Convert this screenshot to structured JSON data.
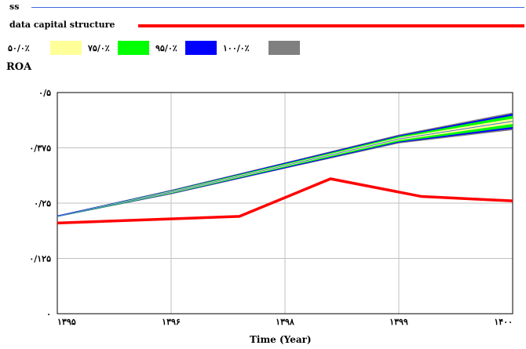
{
  "legend": {
    "series_a": "ss",
    "series_b": "data capital structure",
    "bands": [
      {
        "label": "۵۰/۰٪",
        "color": "#ffff99"
      },
      {
        "label": "۷۵/۰٪",
        "color": "#00ff00"
      },
      {
        "label": "۹۵/۰٪",
        "color": "#0000ff"
      },
      {
        "label": "۱۰۰/۰٪",
        "color": "#808080"
      }
    ]
  },
  "colors": {
    "ss": "#4169e1",
    "data": "#ff0000",
    "grid": "#c0c0c0"
  },
  "chart_data": {
    "type": "line",
    "ylabel": "ROA",
    "xlabel": "Time (Year)",
    "xlim": [
      1395,
      1400
    ],
    "ylim": [
      0,
      0.5
    ],
    "x_ticks": [
      {
        "value": 1395,
        "label": "۱۳۹۵"
      },
      {
        "value": 1396.25,
        "label": "۱۳۹۶"
      },
      {
        "value": 1397.5,
        "label": "۱۳۹۸"
      },
      {
        "value": 1398.75,
        "label": "۱۳۹۹"
      },
      {
        "value": 1400,
        "label": "۱۴۰۰"
      }
    ],
    "y_ticks": [
      {
        "value": 0,
        "label": "۰"
      },
      {
        "value": 0.125,
        "label": "۰/۱۲۵"
      },
      {
        "value": 0.25,
        "label": "۰/۲۵"
      },
      {
        "value": 0.375,
        "label": "۰/۳۷۵"
      },
      {
        "value": 0.5,
        "label": "۰/۵"
      }
    ],
    "series": [
      {
        "name": "data capital structure",
        "x": [
          1395,
          1397.0,
          1398.0,
          1399.0,
          1400
        ],
        "y": [
          0.205,
          0.22,
          0.305,
          0.265,
          0.255
        ]
      },
      {
        "name": "ss",
        "x": [
          1395,
          1396.25,
          1397.5,
          1398.75,
          1400
        ],
        "y": [
          0.22,
          0.275,
          0.335,
          0.395,
          0.435
        ]
      }
    ],
    "bands": [
      {
        "level": "100%",
        "x": [
          1395,
          1396.25,
          1397.5,
          1398.75,
          1400
        ],
        "upper": [
          0.222,
          0.28,
          0.342,
          0.405,
          0.455
        ],
        "lower": [
          0.219,
          0.27,
          0.328,
          0.385,
          0.415
        ]
      },
      {
        "level": "95%",
        "x": [
          1395,
          1396.25,
          1397.5,
          1398.75,
          1400
        ],
        "upper": [
          0.222,
          0.279,
          0.341,
          0.403,
          0.452
        ],
        "lower": [
          0.219,
          0.271,
          0.329,
          0.387,
          0.418
        ]
      },
      {
        "level": "75%",
        "x": [
          1395,
          1396.25,
          1397.5,
          1398.75,
          1400
        ],
        "upper": [
          0.221,
          0.278,
          0.339,
          0.401,
          0.448
        ],
        "lower": [
          0.219,
          0.272,
          0.331,
          0.389,
          0.422
        ]
      },
      {
        "level": "50%",
        "x": [
          1395,
          1396.25,
          1397.5,
          1398.75,
          1400
        ],
        "upper": [
          0.221,
          0.277,
          0.337,
          0.398,
          0.441
        ],
        "lower": [
          0.22,
          0.273,
          0.333,
          0.392,
          0.429
        ]
      }
    ],
    "grid": true
  }
}
